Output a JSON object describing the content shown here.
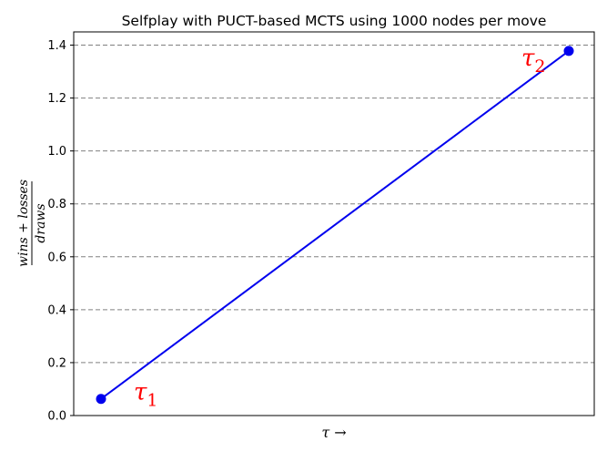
{
  "chart_data": {
    "type": "line",
    "title": "Selfplay with PUCT-based MCTS using 1000 nodes per move",
    "xlabel": "τ →",
    "ylabel": {
      "numerator": "wins + losses",
      "denominator": "draws"
    },
    "x": [
      "τ1",
      "τ2"
    ],
    "series": [
      {
        "values": [
          0.063,
          1.378
        ]
      }
    ],
    "ylim": [
      0,
      1.45
    ],
    "yticks": [
      0.0,
      0.2,
      0.4,
      0.6,
      0.8,
      1.0,
      1.2,
      1.4
    ],
    "ytick_labels": [
      "0.0",
      "0.2",
      "0.4",
      "0.6",
      "0.8",
      "1.0",
      "1.2",
      "1.4"
    ],
    "grid": "horizontal dashed",
    "annotations": [
      {
        "base": "τ",
        "sub": "1",
        "point": 0
      },
      {
        "base": "τ",
        "sub": "2",
        "point": 1
      }
    ],
    "colors": {
      "line": "#0000ee",
      "marker": "#0000ee",
      "annotation": "#ff0000",
      "grid": "#808080"
    }
  }
}
